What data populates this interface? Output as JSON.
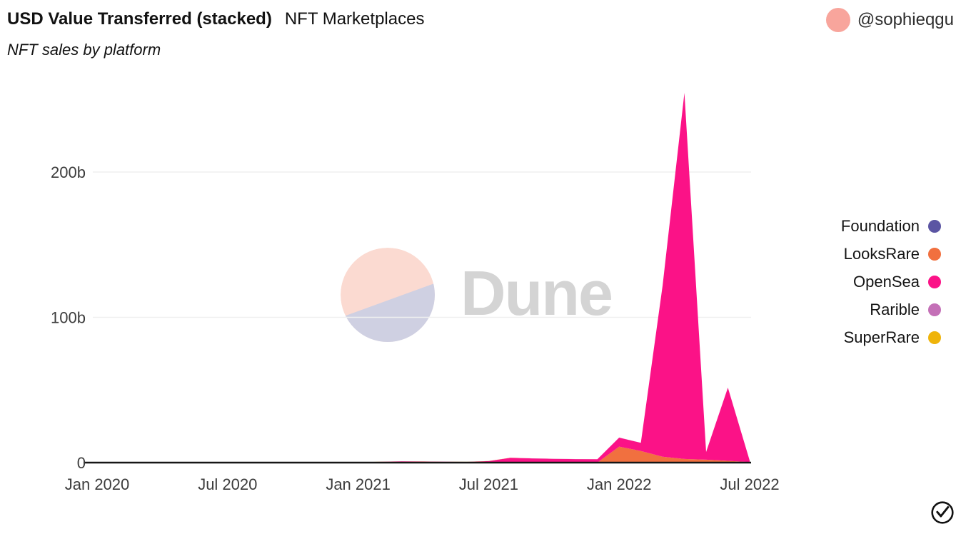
{
  "header": {
    "title": "USD Value Transferred (stacked)",
    "title_secondary": "NFT Marketplaces",
    "subtitle": "NFT sales by platform"
  },
  "author": {
    "handle": "@sophieqgu",
    "avatar_color": "#F8A59C"
  },
  "watermark": {
    "text": "Dune",
    "text_color": "#D4D4D4",
    "circle_top_color": "#FBDAD1",
    "circle_bottom_color": "#CFD0E2"
  },
  "footer": {
    "checkmark_icon": "check-circle"
  },
  "chart_data": {
    "type": "area",
    "stacked": true,
    "title": "USD Value Transferred (stacked)",
    "subtitle": "NFT sales by platform",
    "y_unit": "billions USD",
    "ylim": [
      0,
      260
    ],
    "grid": "horizontal",
    "legend_position": "right",
    "n_points": 31,
    "months": [
      "Jan 2020",
      "Feb 2020",
      "Mar 2020",
      "Apr 2020",
      "May 2020",
      "Jun 2020",
      "Jul 2020",
      "Aug 2020",
      "Sep 2020",
      "Oct 2020",
      "Nov 2020",
      "Dec 2020",
      "Jan 2021",
      "Feb 2021",
      "Mar 2021",
      "Apr 2021",
      "May 2021",
      "Jun 2021",
      "Jul 2021",
      "Aug 2021",
      "Sep 2021",
      "Oct 2021",
      "Nov 2021",
      "Dec 2021",
      "Jan 2022",
      "Feb 2022",
      "Mar 2022",
      "Apr 2022",
      "May 2022",
      "Jun 2022",
      "Jul 2022"
    ],
    "x_ticks": [
      {
        "month_index": 0,
        "label": "Jan 2020"
      },
      {
        "month_index": 6,
        "label": "Jul 2020"
      },
      {
        "month_index": 12,
        "label": "Jan 2021"
      },
      {
        "month_index": 18,
        "label": "Jul 2021"
      },
      {
        "month_index": 24,
        "label": "Jan 2022"
      },
      {
        "month_index": 30,
        "label": "Jul 2022"
      }
    ],
    "y_ticks": [
      {
        "value": 0,
        "label": "0"
      },
      {
        "value": 100,
        "label": "100b"
      },
      {
        "value": 200,
        "label": "200b"
      }
    ],
    "series": [
      {
        "name": "Foundation",
        "color": "#5B55A3",
        "values": [
          0,
          0,
          0,
          0,
          0,
          0,
          0,
          0,
          0,
          0,
          0,
          0,
          0,
          0.02,
          0.02,
          0.02,
          0.02,
          0.02,
          0.02,
          0.02,
          0.02,
          0.02,
          0.02,
          0.02,
          0.02,
          0.02,
          0.02,
          0.02,
          0.02,
          0.02,
          0.01
        ]
      },
      {
        "name": "LooksRare",
        "color": "#F1703F",
        "values": [
          0,
          0,
          0,
          0,
          0,
          0,
          0,
          0,
          0,
          0,
          0,
          0,
          0,
          0,
          0,
          0,
          0,
          0,
          0,
          0,
          0,
          0,
          0,
          0,
          11,
          8,
          4,
          2.5,
          2,
          1.2,
          0.4
        ]
      },
      {
        "name": "OpenSea",
        "color": "#FB1287",
        "values": [
          0.03,
          0.03,
          0.04,
          0.04,
          0.04,
          0.05,
          0.06,
          0.09,
          0.08,
          0.07,
          0.06,
          0.07,
          0.15,
          0.5,
          0.8,
          0.7,
          0.55,
          0.45,
          1.0,
          3.3,
          2.9,
          2.6,
          2.4,
          2.3,
          6.2,
          5.6,
          118,
          252,
          5.3,
          50.4,
          1.0
        ]
      },
      {
        "name": "Rarible",
        "color": "#C470B7",
        "values": [
          0,
          0,
          0,
          0,
          0,
          0,
          0,
          0.02,
          0.02,
          0.02,
          0.02,
          0.02,
          0.03,
          0.03,
          0.03,
          0.03,
          0.03,
          0.03,
          0.03,
          0.03,
          0.03,
          0.03,
          0.03,
          0.03,
          0.03,
          0.03,
          0.03,
          0.03,
          0.03,
          0.03,
          0.02
        ]
      },
      {
        "name": "SuperRare",
        "color": "#EFB40A",
        "values": [
          0,
          0,
          0.01,
          0.01,
          0.01,
          0.01,
          0.01,
          0.02,
          0.02,
          0.02,
          0.02,
          0.02,
          0.02,
          0.02,
          0.02,
          0.02,
          0.02,
          0.02,
          0.02,
          0.02,
          0.02,
          0.02,
          0.02,
          0.02,
          0.02,
          0.02,
          0.02,
          0.02,
          0.02,
          0.02,
          0.01
        ]
      }
    ]
  }
}
